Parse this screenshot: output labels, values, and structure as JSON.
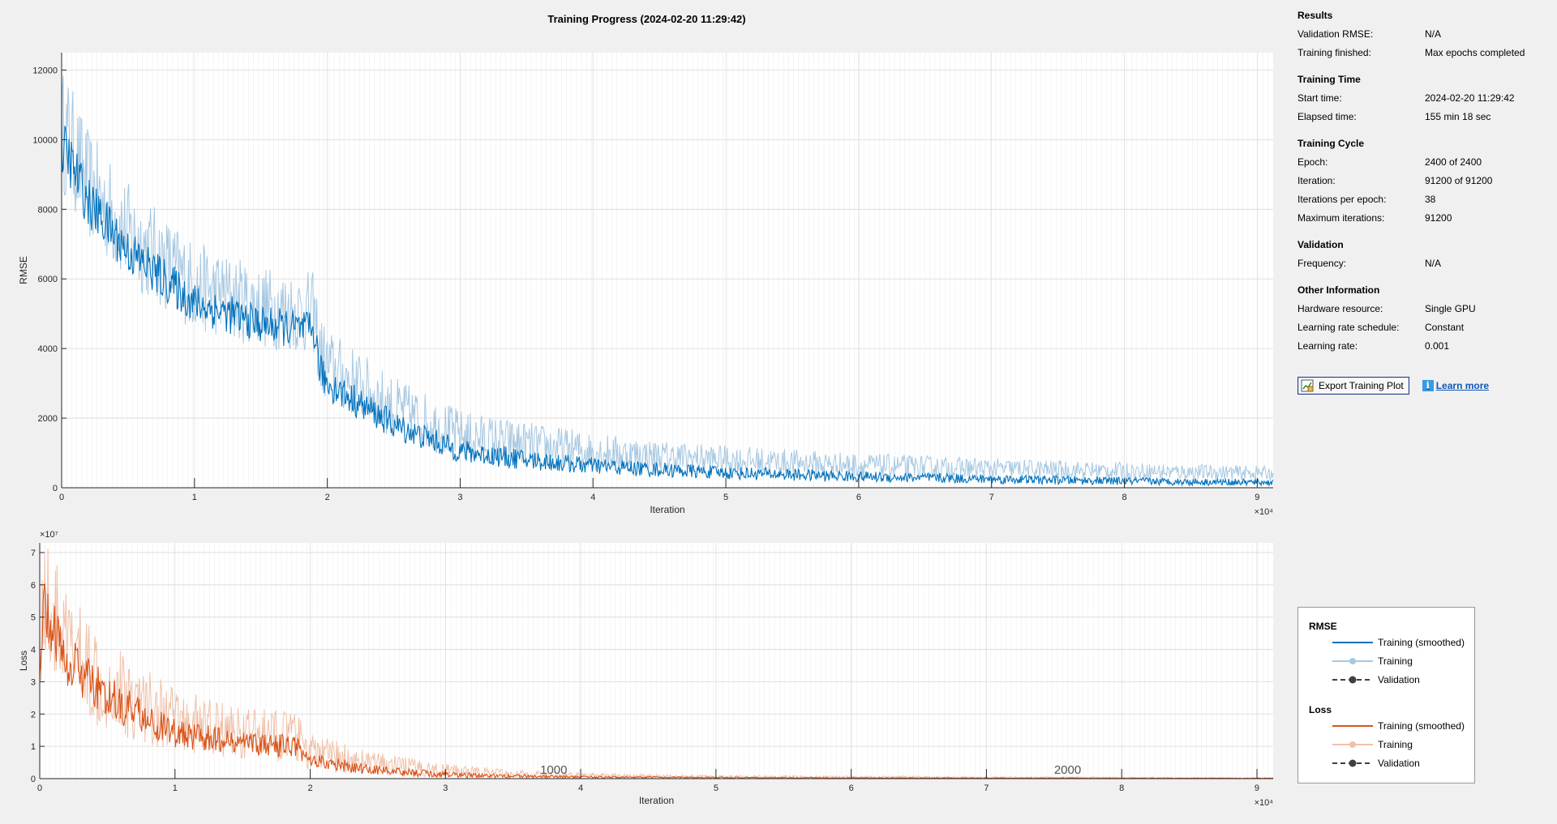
{
  "title": "Training Progress (2024-02-20 11:29:42)",
  "info": {
    "sections": [
      {
        "heading": "Results",
        "rows": [
          {
            "label": "Validation RMSE:",
            "value": "N/A"
          },
          {
            "label": "Training finished:",
            "value": "Max epochs completed"
          }
        ]
      },
      {
        "heading": "Training Time",
        "rows": [
          {
            "label": "Start time:",
            "value": "2024-02-20 11:29:42"
          },
          {
            "label": "Elapsed time:",
            "value": "155 min 18 sec"
          }
        ]
      },
      {
        "heading": "Training Cycle",
        "rows": [
          {
            "label": "Epoch:",
            "value": "2400 of 2400"
          },
          {
            "label": "Iteration:",
            "value": "91200 of 91200"
          },
          {
            "label": "Iterations per epoch:",
            "value": "38"
          },
          {
            "label": "Maximum iterations:",
            "value": "91200"
          }
        ]
      },
      {
        "heading": "Validation",
        "rows": [
          {
            "label": "Frequency:",
            "value": "N/A"
          }
        ]
      },
      {
        "heading": "Other Information",
        "rows": [
          {
            "label": "Hardware resource:",
            "value": "Single GPU"
          },
          {
            "label": "Learning rate schedule:",
            "value": "Constant"
          },
          {
            "label": "Learning rate:",
            "value": "0.001"
          }
        ]
      }
    ],
    "export_label": "Export Training Plot",
    "learn_more_label": "Learn more"
  },
  "legend": {
    "groups": [
      {
        "title": "RMSE",
        "entries": [
          {
            "label": "Training (smoothed)",
            "style": "smoothed",
            "color": "#0072BD"
          },
          {
            "label": "Training",
            "style": "raw",
            "color": "#A6C8E2"
          },
          {
            "label": "Validation",
            "style": "validation",
            "color": "#404040"
          }
        ]
      },
      {
        "title": "Loss",
        "entries": [
          {
            "label": "Training (smoothed)",
            "style": "smoothed",
            "color": "#D95319"
          },
          {
            "label": "Training",
            "style": "raw",
            "color": "#F0C0A8"
          },
          {
            "label": "Validation",
            "style": "validation",
            "color": "#404040"
          }
        ]
      }
    ]
  },
  "chart_data": [
    {
      "type": "line",
      "ylabel": "RMSE",
      "xlabel": "Iteration",
      "x_exponent_label": "×10⁴",
      "xlim": [
        0,
        91200
      ],
      "ylim": [
        0,
        12500
      ],
      "xticks": [
        0,
        1,
        2,
        3,
        4,
        5,
        6,
        7,
        8,
        9
      ],
      "yticks": [
        0,
        2000,
        4000,
        6000,
        8000,
        10000,
        12000
      ],
      "grid": true,
      "epoch_annotations": [],
      "series": [
        {
          "name": "Training (smoothed)",
          "color": "#0072BD",
          "x": [
            0,
            500,
            2000,
            5000,
            10000,
            15000,
            19000,
            19500,
            20000,
            25000,
            30000,
            35000,
            40000,
            45000,
            50000,
            60000,
            70000,
            80000,
            91200
          ],
          "y": [
            9800,
            9500,
            8200,
            6800,
            5300,
            4700,
            4500,
            3300,
            3000,
            1800,
            1050,
            800,
            630,
            520,
            430,
            320,
            250,
            190,
            150
          ]
        },
        {
          "name": "Training",
          "color": "#A6C8E2",
          "x": [
            0,
            500,
            2000,
            5000,
            10000,
            15000,
            19000,
            19500,
            20000,
            25000,
            30000,
            35000,
            40000,
            45000,
            50000,
            60000,
            70000,
            80000,
            91200
          ],
          "y": [
            10300,
            10000,
            8700,
            7300,
            5800,
            5200,
            5000,
            3800,
            3500,
            2300,
            1500,
            1250,
            1050,
            900,
            800,
            650,
            550,
            480,
            420
          ],
          "spread": [
            1800,
            1800,
            1600,
            1500,
            1300,
            1200,
            1200,
            1200,
            1100,
            900,
            750,
            650,
            550,
            470,
            420,
            350,
            300,
            250,
            200
          ]
        }
      ]
    },
    {
      "type": "line",
      "ylabel": "Loss",
      "xlabel": "Iteration",
      "y_exponent_label": "×10⁷",
      "x_exponent_label": "×10⁴",
      "xlim": [
        0,
        91200
      ],
      "ylim": [
        0,
        7.3
      ],
      "xticks": [
        0,
        1,
        2,
        3,
        4,
        5,
        6,
        7,
        8,
        9
      ],
      "yticks": [
        0,
        1,
        2,
        3,
        4,
        5,
        6,
        7
      ],
      "grid": true,
      "epoch_annotations": [
        {
          "label": "1000",
          "iteration": 38000
        },
        {
          "label": "2000",
          "iteration": 76000
        }
      ],
      "series": [
        {
          "name": "Training (smoothed)",
          "color": "#D95319",
          "x": [
            0,
            300,
            2000,
            5000,
            10000,
            15000,
            19000,
            19500,
            20000,
            25000,
            30000,
            35000,
            40000,
            45000,
            50000,
            60000,
            70000,
            80000,
            91200
          ],
          "y": [
            4.0,
            5.2,
            3.7,
            2.5,
            1.4,
            1.1,
            1.0,
            0.65,
            0.55,
            0.25,
            0.12,
            0.07,
            0.05,
            0.04,
            0.03,
            0.02,
            0.015,
            0.01,
            0.008
          ]
        },
        {
          "name": "Training",
          "color": "#F0C0A8",
          "x": [
            0,
            300,
            2000,
            5000,
            10000,
            15000,
            19000,
            19500,
            20000,
            25000,
            30000,
            35000,
            40000,
            45000,
            50000,
            60000,
            70000,
            80000,
            91200
          ],
          "y": [
            4.4,
            5.6,
            4.1,
            2.9,
            1.8,
            1.4,
            1.3,
            0.95,
            0.8,
            0.45,
            0.25,
            0.15,
            0.1,
            0.08,
            0.06,
            0.05,
            0.04,
            0.03,
            0.02
          ],
          "spread": [
            2.0,
            2.0,
            1.8,
            1.5,
            1.0,
            0.8,
            0.8,
            0.7,
            0.6,
            0.35,
            0.2,
            0.12,
            0.08,
            0.06,
            0.05,
            0.04,
            0.03,
            0.02,
            0.02
          ]
        }
      ]
    }
  ]
}
